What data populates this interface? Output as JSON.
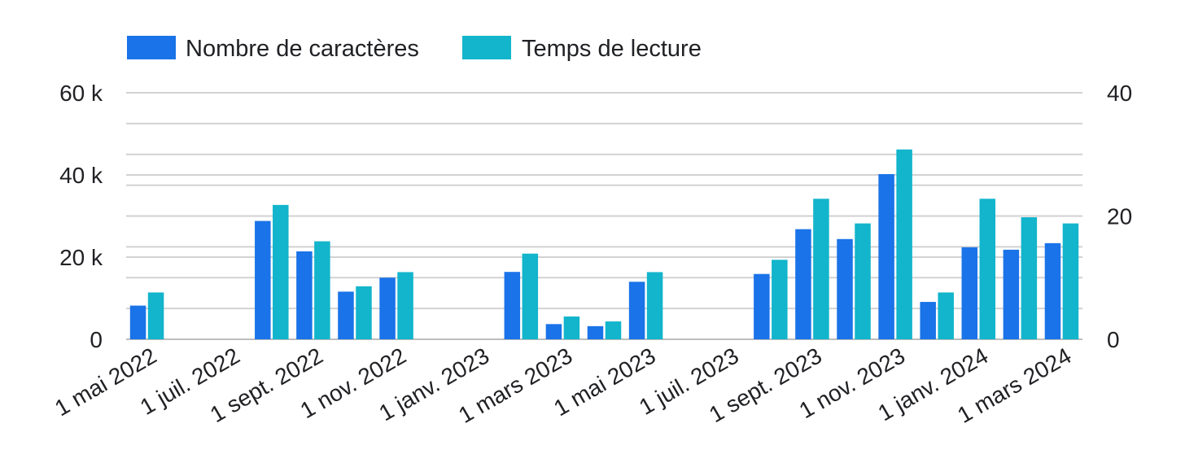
{
  "chart_data": {
    "type": "bar",
    "x_type": "date",
    "x_tick_labels": [
      "1 mai 2022",
      "1 juil. 2022",
      "1 sept. 2022",
      "1 nov. 2022",
      "1 janv. 2023",
      "1 mars 2023",
      "1 mai 2023",
      "1 juil. 2023",
      "1 sept. 2023",
      "1 nov. 2023",
      "1 janv. 2024",
      "1 mars 2024"
    ],
    "categories": [
      "2022-05",
      "2022-06",
      "2022-07",
      "2022-08",
      "2022-09",
      "2022-10",
      "2022-11",
      "2022-12",
      "2023-01",
      "2023-02",
      "2023-03",
      "2023-04",
      "2023-05",
      "2023-06",
      "2023-07",
      "2023-08",
      "2023-09",
      "2023-10",
      "2023-11",
      "2023-12",
      "2024-01",
      "2024-02",
      "2024-03"
    ],
    "series": [
      {
        "name": "Nombre de caractères",
        "axis": "left",
        "color": "#1a73e8",
        "values": [
          8200,
          0,
          0,
          28800,
          21400,
          11600,
          15000,
          0,
          0,
          16400,
          3700,
          3200,
          14000,
          0,
          0,
          15900,
          26800,
          24400,
          40200,
          9100,
          22400,
          21800,
          23400
        ]
      },
      {
        "name": "Temps de lecture",
        "axis": "right",
        "color": "#12b5cb",
        "values": [
          7.6,
          0,
          0,
          21.8,
          15.9,
          8.6,
          10.9,
          0,
          0,
          13.9,
          3.7,
          2.9,
          10.9,
          0,
          0,
          12.9,
          22.8,
          18.8,
          30.8,
          7.6,
          22.8,
          19.8,
          18.8
        ]
      }
    ],
    "y_left": {
      "ylim": [
        0,
        60000
      ],
      "ticks": [
        0,
        20000,
        40000,
        60000
      ],
      "tick_labels": [
        "0",
        "20 k",
        "40 k",
        "60 k"
      ]
    },
    "y_right": {
      "ylim": [
        0,
        40
      ],
      "ticks": [
        0,
        20,
        40
      ],
      "tick_labels": [
        "0",
        "20",
        "40"
      ]
    },
    "legend_position": "top-left",
    "grid": true
  }
}
